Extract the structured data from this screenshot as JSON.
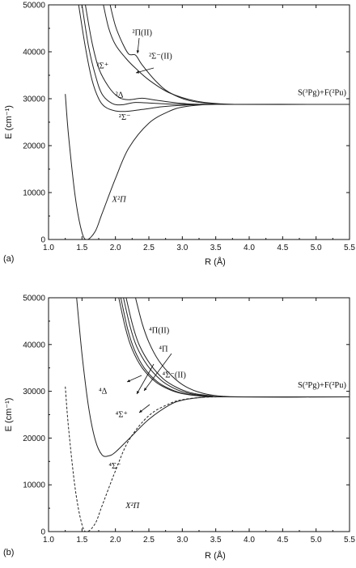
{
  "chart_data": [
    {
      "type": "line",
      "panel_label": "(a)",
      "xlabel": "R (Å)",
      "ylabel": "E (cm⁻¹)",
      "xlim": [
        1.0,
        5.5
      ],
      "ylim": [
        0,
        50000
      ],
      "x_ticks": [
        "1.0",
        "1.5",
        "2.0",
        "2.5",
        "3.0",
        "3.5",
        "4.0",
        "4.5",
        "5.0",
        "5.5"
      ],
      "y_ticks": [
        "0",
        "10000",
        "20000",
        "30000",
        "40000",
        "50000"
      ],
      "asymptote_label": "S(³P_g)+F(²P_u)",
      "series": [
        {
          "name": "X²Π",
          "style": "solid",
          "points": [
            [
              1.25,
              31000
            ],
            [
              1.3,
              22000
            ],
            [
              1.4,
              9000
            ],
            [
              1.5,
              1500
            ],
            [
              1.58,
              0
            ],
            [
              1.7,
              1800
            ],
            [
              1.8,
              5500
            ],
            [
              2.0,
              13000
            ],
            [
              2.2,
              19500
            ],
            [
              2.5,
              24800
            ],
            [
              2.8,
              27300
            ],
            [
              3.0,
              28200
            ],
            [
              3.3,
              28700
            ],
            [
              3.6,
              28800
            ],
            [
              4.0,
              28800
            ],
            [
              5.5,
              28800
            ]
          ]
        },
        {
          "name": "²Σ⁻",
          "style": "solid",
          "points": [
            [
              1.45,
              50000
            ],
            [
              1.55,
              41000
            ],
            [
              1.65,
              34000
            ],
            [
              1.75,
              30000
            ],
            [
              1.85,
              28200
            ],
            [
              2.0,
              27400
            ],
            [
              2.15,
              27300
            ],
            [
              2.4,
              27700
            ],
            [
              2.7,
              28300
            ],
            [
              3.0,
              28600
            ],
            [
              3.5,
              28800
            ],
            [
              5.5,
              28800
            ]
          ]
        },
        {
          "name": "²Δ",
          "style": "solid",
          "points": [
            [
              1.5,
              50000
            ],
            [
              1.6,
              41000
            ],
            [
              1.7,
              35000
            ],
            [
              1.8,
              31000
            ],
            [
              1.95,
              29000
            ],
            [
              2.1,
              28700
            ],
            [
              2.3,
              29200
            ],
            [
              2.6,
              29000
            ],
            [
              3.0,
              28800
            ],
            [
              3.5,
              28800
            ],
            [
              5.5,
              28800
            ]
          ]
        },
        {
          "name": "²Σ⁺",
          "style": "solid",
          "points": [
            [
              1.55,
              50000
            ],
            [
              1.65,
              42000
            ],
            [
              1.75,
              36500
            ],
            [
              1.9,
              32500
            ],
            [
              2.05,
              30300
            ],
            [
              2.2,
              29800
            ],
            [
              2.4,
              30100
            ],
            [
              2.6,
              29700
            ],
            [
              3.0,
              29000
            ],
            [
              3.5,
              28800
            ],
            [
              5.5,
              28800
            ]
          ]
        },
        {
          "name": "²Σ⁻(II)",
          "style": "solid",
          "points": [
            [
              1.82,
              50000
            ],
            [
              1.9,
              45000
            ],
            [
              2.0,
              41500
            ],
            [
              2.15,
              38700
            ],
            [
              2.3,
              36500
            ],
            [
              2.5,
              34000
            ],
            [
              2.8,
              31300
            ],
            [
              3.2,
              29500
            ],
            [
              3.6,
              28900
            ],
            [
              4.0,
              28800
            ],
            [
              5.5,
              28800
            ]
          ]
        },
        {
          "name": "²Π(II)",
          "style": "solid",
          "points": [
            [
              1.92,
              50000
            ],
            [
              2.0,
              45500
            ],
            [
              2.1,
              42000
            ],
            [
              2.2,
              39500
            ],
            [
              2.3,
              39300
            ],
            [
              2.4,
              37200
            ],
            [
              2.6,
              33800
            ],
            [
              2.8,
              31400
            ],
            [
              3.1,
              29600
            ],
            [
              3.5,
              28900
            ],
            [
              4.0,
              28800
            ],
            [
              5.5,
              28800
            ]
          ]
        }
      ],
      "annotations": [
        {
          "text": "²Π(II)",
          "x": 2.25,
          "y": 43500
        },
        {
          "text": "²Σ⁻(II)",
          "x": 2.5,
          "y": 38500
        },
        {
          "text": "²Σ⁺",
          "x": 1.72,
          "y": 36500
        },
        {
          "text": "²Δ",
          "x": 2.0,
          "y": 30300
        },
        {
          "text": "²Σ⁻",
          "x": 2.05,
          "y": 25500
        },
        {
          "text": "X²Π",
          "x": 1.95,
          "y": 8000
        }
      ]
    },
    {
      "type": "line",
      "panel_label": "(b)",
      "xlabel": "R (Å)",
      "ylabel": "E (cm⁻¹)",
      "xlim": [
        1.0,
        5.5
      ],
      "ylim": [
        0,
        50000
      ],
      "x_ticks": [
        "1.0",
        "1.5",
        "2.0",
        "2.5",
        "3.0",
        "3.5",
        "4.0",
        "4.5",
        "5.0",
        "5.5"
      ],
      "y_ticks": [
        "0",
        "10000",
        "20000",
        "30000",
        "40000",
        "50000"
      ],
      "asymptote_label": "S(³P_g)+F(²P_u)",
      "series": [
        {
          "name": "X²Π",
          "style": "dashed",
          "points": [
            [
              1.25,
              31000
            ],
            [
              1.3,
              22000
            ],
            [
              1.4,
              9000
            ],
            [
              1.5,
              1500
            ],
            [
              1.58,
              0
            ],
            [
              1.7,
              1800
            ],
            [
              1.8,
              5500
            ],
            [
              2.0,
              13000
            ],
            [
              2.2,
              19500
            ],
            [
              2.5,
              24800
            ],
            [
              2.8,
              27300
            ],
            [
              3.0,
              28200
            ],
            [
              3.3,
              28700
            ],
            [
              3.6,
              28800
            ],
            [
              4.0,
              28800
            ],
            [
              5.5,
              28800
            ]
          ]
        },
        {
          "name": "⁴Σ⁻",
          "style": "solid",
          "points": [
            [
              1.42,
              50000
            ],
            [
              1.5,
              38000
            ],
            [
              1.6,
              26500
            ],
            [
              1.7,
              19500
            ],
            [
              1.8,
              16400
            ],
            [
              1.9,
              16200
            ],
            [
              2.0,
              17000
            ],
            [
              2.2,
              19800
            ],
            [
              2.5,
              24000
            ],
            [
              2.8,
              27000
            ],
            [
              3.0,
              28100
            ],
            [
              3.3,
              28700
            ],
            [
              3.6,
              28800
            ],
            [
              5.5,
              28800
            ]
          ]
        },
        {
          "name": "⁴Δ",
          "style": "solid",
          "points": [
            [
              2.05,
              50000
            ],
            [
              2.15,
              43500
            ],
            [
              2.25,
              39000
            ],
            [
              2.4,
              35000
            ],
            [
              2.6,
              32000
            ],
            [
              2.8,
              30400
            ],
            [
              3.0,
              29500
            ],
            [
              3.3,
              28950
            ],
            [
              3.6,
              28800
            ],
            [
              5.5,
              28800
            ]
          ]
        },
        {
          "name": "⁴Σ⁺",
          "style": "solid",
          "points": [
            [
              2.08,
              50000
            ],
            [
              2.18,
              43500
            ],
            [
              2.28,
              39000
            ],
            [
              2.43,
              35000
            ],
            [
              2.63,
              32000
            ],
            [
              2.83,
              30400
            ],
            [
              3.03,
              29500
            ],
            [
              3.33,
              28950
            ],
            [
              3.6,
              28800
            ],
            [
              5.5,
              28800
            ]
          ]
        },
        {
          "name": "⁴Π",
          "style": "solid",
          "points": [
            [
              2.12,
              50000
            ],
            [
              2.22,
              43800
            ],
            [
              2.32,
              39500
            ],
            [
              2.48,
              35500
            ],
            [
              2.68,
              32400
            ],
            [
              2.88,
              30600
            ],
            [
              3.08,
              29600
            ],
            [
              3.38,
              29000
            ],
            [
              3.7,
              28800
            ],
            [
              5.5,
              28800
            ]
          ]
        },
        {
          "name": "⁴Σ⁻(II)",
          "style": "solid",
          "points": [
            [
              2.16,
              50000
            ],
            [
              2.26,
              44000
            ],
            [
              2.36,
              39800
            ],
            [
              2.52,
              35800
            ],
            [
              2.72,
              32600
            ],
            [
              2.92,
              30800
            ],
            [
              3.12,
              29700
            ],
            [
              3.42,
              29050
            ],
            [
              3.7,
              28800
            ],
            [
              5.5,
              28800
            ]
          ]
        },
        {
          "name": "⁴Π(II)",
          "style": "solid",
          "points": [
            [
              2.3,
              50000
            ],
            [
              2.4,
              44500
            ],
            [
              2.5,
              40500
            ],
            [
              2.65,
              36500
            ],
            [
              2.85,
              33200
            ],
            [
              3.05,
              31000
            ],
            [
              3.3,
              29600
            ],
            [
              3.6,
              28950
            ],
            [
              4.0,
              28800
            ],
            [
              5.5,
              28800
            ]
          ]
        }
      ],
      "annotations": [
        {
          "text": "⁴Π(II)",
          "x": 2.5,
          "y": 42500
        },
        {
          "text": "⁴Π",
          "x": 2.65,
          "y": 38500
        },
        {
          "text": "⁴Σ⁻(II)",
          "x": 2.7,
          "y": 33000
        },
        {
          "text": "⁴Δ",
          "x": 1.75,
          "y": 29500
        },
        {
          "text": "⁴Σ⁺",
          "x": 2.0,
          "y": 24500
        },
        {
          "text": "⁴Σ⁻",
          "x": 1.9,
          "y": 13500
        },
        {
          "text": "X²Π",
          "x": 2.15,
          "y": 5000
        }
      ]
    }
  ]
}
